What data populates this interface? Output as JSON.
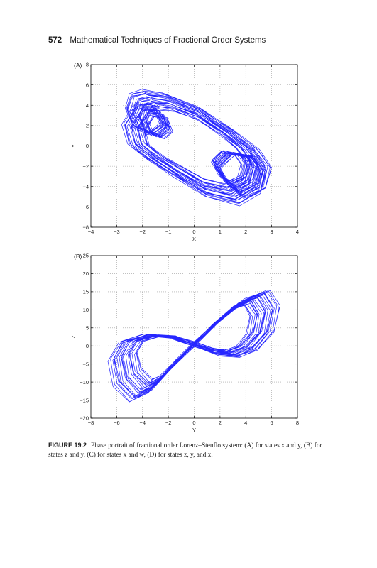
{
  "page": {
    "page_number": "572",
    "running_title": "Mathematical Techniques of Fractional Order Systems"
  },
  "figure": {
    "label": "FIGURE 19.2",
    "caption": "Phase portrait of fractional order Lorenz–Stenflo system: (A) for states x and y, (B) for states z and y, (C) for states x and w, (D) for states z, y, and x."
  },
  "chart_data": [
    {
      "type": "line",
      "panel_label": "(A)",
      "xlabel": "X",
      "ylabel": "Y",
      "xlim": [
        -4,
        4
      ],
      "ylim": [
        -8,
        8
      ],
      "xticks": [
        -4,
        -3,
        -2,
        -1,
        0,
        1,
        2,
        3,
        4
      ],
      "yticks": [
        -8,
        -6,
        -4,
        -2,
        0,
        2,
        4,
        6,
        8
      ],
      "grid": true,
      "line_color": "#1a1aff",
      "series": [
        {
          "x": [
            -2.0,
            -1.2,
            0.2,
            1.5,
            2.5,
            3.0,
            2.8,
            2.0,
            1.4,
            1.0,
            1.6,
            2.4,
            2.8,
            2.6,
            1.8,
            0.5,
            -0.8,
            -1.8,
            -2.6,
            -2.8,
            -2.3,
            -1.6,
            -1.3,
            -1.8,
            -2.4,
            -2.7,
            -2.5,
            -2.0
          ],
          "y": [
            5.5,
            5.2,
            3.8,
            1.6,
            -0.4,
            -2.2,
            -4.2,
            -5.2,
            -4.0,
            -2.2,
            -0.8,
            -1.2,
            -2.6,
            -4.6,
            -5.8,
            -5.0,
            -3.0,
            -1.4,
            0.2,
            2.2,
            4.2,
            4.0,
            2.2,
            1.2,
            2.0,
            3.8,
            5.2,
            5.5
          ]
        }
      ]
    },
    {
      "type": "line",
      "panel_label": "(B)",
      "xlabel": "Y",
      "ylabel": "Z",
      "xlim": [
        -8,
        8
      ],
      "ylim": [
        -20,
        25
      ],
      "xticks": [
        -8,
        -6,
        -4,
        -2,
        0,
        2,
        4,
        6,
        8
      ],
      "yticks": [
        -20,
        -15,
        -10,
        -5,
        0,
        5,
        10,
        15,
        20,
        25
      ],
      "grid": true,
      "line_color": "#1a1aff",
      "series": [
        {
          "x": [
            0.0,
            2.0,
            4.0,
            5.8,
            6.6,
            6.2,
            5.0,
            3.6,
            2.0,
            0.0,
            -2.0,
            -4.0,
            -5.8,
            -6.6,
            -6.2,
            -5.0,
            -3.6,
            -2.0,
            0.0
          ],
          "y": [
            0.0,
            7.0,
            13.0,
            15.5,
            11.0,
            4.0,
            -1.0,
            -3.0,
            -2.5,
            0.0,
            2.5,
            3.0,
            1.0,
            -4.0,
            -11.0,
            -15.5,
            -13.0,
            -7.0,
            0.0
          ]
        }
      ]
    }
  ]
}
